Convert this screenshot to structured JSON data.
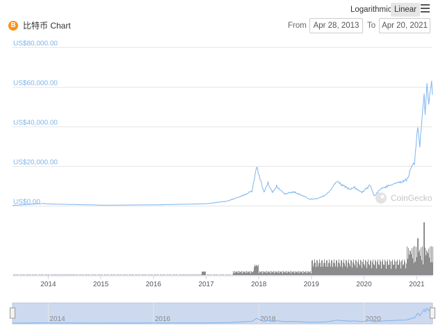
{
  "toolbar": {
    "logarithmic_label": "Logarithmic",
    "linear_label": "Linear",
    "menu_icon": "hamburger-menu-icon"
  },
  "header": {
    "coin_icon": "bitcoin-icon",
    "coin_symbol": "B",
    "title": "比特币 Chart",
    "from_label": "From",
    "from_value": "Apr 28, 2013",
    "to_label": "To",
    "to_value": "Apr 20, 2021"
  },
  "watermark": "CoinGecko",
  "colors": {
    "price_line": "#7cb5ec",
    "volume_bars": "#8c8c8c",
    "axis_label": "#7cb5ec",
    "navigator_fill": "#cdd9ef",
    "accent": "#f7931a"
  },
  "chart_data": {
    "type": "line",
    "y_axis": {
      "tick_labels": [
        "US$0.00",
        "US$20,000.00",
        "US$40,000.00",
        "US$60,000.00",
        "US$80,000.00"
      ],
      "ticks": [
        0,
        20000,
        40000,
        60000,
        80000
      ],
      "ylim": [
        0,
        80000
      ]
    },
    "x_axis": {
      "tick_labels": [
        "2014",
        "2015",
        "2016",
        "2017",
        "2018",
        "2019",
        "2020",
        "2021"
      ],
      "xlim": [
        "2013-04-28",
        "2021-04-20"
      ]
    },
    "navigator_tick_labels": [
      "2014",
      "2016",
      "2018",
      "2020"
    ],
    "grid": true,
    "series": [
      {
        "x": [
          "2013-04-28",
          "2013-11-30",
          "2014-01-15",
          "2014-06-01",
          "2015-01-15",
          "2016-01-01",
          "2016-06-15",
          "2017-01-01",
          "2017-05-25",
          "2017-09-01",
          "2017-11-15",
          "2017-12-17",
          "2018-01-10",
          "2018-02-06",
          "2018-03-05",
          "2018-04-06",
          "2018-05-05",
          "2018-06-29",
          "2018-09-01",
          "2018-11-20",
          "2018-12-15",
          "2019-02-08",
          "2019-04-02",
          "2019-05-15",
          "2019-06-26",
          "2019-08-01",
          "2019-09-25",
          "2019-10-26",
          "2019-12-18",
          "2020-02-12",
          "2020-03-12",
          "2020-04-30",
          "2020-07-27",
          "2020-09-01",
          "2020-10-21",
          "2020-11-20",
          "2020-12-16",
          "2021-01-08",
          "2021-01-22",
          "2021-02-08",
          "2021-02-21",
          "2021-02-28",
          "2021-03-13",
          "2021-03-25",
          "2021-04-14",
          "2021-04-20"
        ],
        "values": [
          135,
          1100,
          850,
          640,
          270,
          430,
          680,
          960,
          2300,
          4800,
          7300,
          19500,
          13500,
          6900,
          11300,
          6800,
          9800,
          5900,
          7100,
          4300,
          3300,
          3500,
          5000,
          7900,
          12500,
          10400,
          8300,
          9200,
          6600,
          10300,
          4900,
          8700,
          11000,
          11900,
          12800,
          18500,
          21800,
          40500,
          30500,
          46000,
          57000,
          46000,
          61000,
          51000,
          63500,
          56000
        ]
      }
    ],
    "volume": {
      "type": "bar",
      "relative_max_date": "2021-02-22"
    }
  }
}
